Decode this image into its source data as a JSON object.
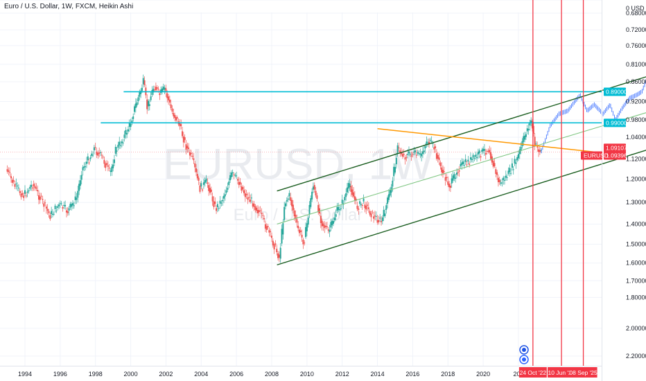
{
  "header": {
    "title": "Euro / U.S. Dollar, 1W, FXCM, Heikin Ashi"
  },
  "watermark": {
    "symbol": "EURUSD",
    "interval": "1W",
    "description": "Euro / U.S. Dollar"
  },
  "colors": {
    "up_candle": "#26a69a",
    "down_candle": "#ef5350",
    "forecast": "#2962ff",
    "channel": "#1b5e20",
    "channel_mid": "#81c784",
    "resistance": "#ff9800",
    "horizontal": "#00bcd4",
    "vertical": "#f23645",
    "price_tag": "#f23645"
  },
  "chart_data": {
    "type": "line",
    "title": "Euro / U.S. Dollar, 1W, FXCM, Heikin Ashi",
    "symbol": "EURUSD",
    "scale": "inverted-log",
    "y_axis_ticks": [
      "0 USD",
      "0.68000",
      "0.72000",
      "0.76000",
      "0.81000",
      "0.86000",
      "0.92000",
      "0.98000",
      "1.04000",
      "1.12000",
      "1.20000",
      "1.30000",
      "1.40000",
      "1.50000",
      "1.60000",
      "1.70000",
      "1.80000",
      "2.00000",
      "2.20000"
    ],
    "y_tick_values": [
      0.65,
      0.68,
      0.72,
      0.76,
      0.81,
      0.86,
      0.92,
      0.98,
      1.04,
      1.12,
      1.2,
      1.3,
      1.4,
      1.5,
      1.6,
      1.7,
      1.8,
      2.0,
      2.2
    ],
    "x_axis_ticks": [
      "1994",
      "1996",
      "1998",
      "2000",
      "2002",
      "2004",
      "2006",
      "2008",
      "2010",
      "2012",
      "2014",
      "2016",
      "2018",
      "2020",
      "202"
    ],
    "x_tick_years": [
      1994,
      1996,
      1998,
      2000,
      2002,
      2004,
      2006,
      2008,
      2010,
      2012,
      2014,
      2016,
      2018,
      2020,
      2022
    ],
    "series": [
      {
        "values": [
          [
            1993.0,
            1.16
          ],
          [
            1993.5,
            1.23
          ],
          [
            1994.0,
            1.27
          ],
          [
            1994.5,
            1.22
          ],
          [
            1995.0,
            1.29
          ],
          [
            1995.5,
            1.36
          ],
          [
            1996.0,
            1.31
          ],
          [
            1996.5,
            1.34
          ],
          [
            1997.0,
            1.28
          ],
          [
            1997.3,
            1.16
          ],
          [
            1997.7,
            1.12
          ],
          [
            1998.0,
            1.08
          ],
          [
            1998.5,
            1.12
          ],
          [
            1998.9,
            1.18
          ],
          [
            1999.2,
            1.09
          ],
          [
            1999.6,
            1.05
          ],
          [
            2000.0,
            1.0
          ],
          [
            2000.3,
            0.94
          ],
          [
            2000.8,
            0.86
          ],
          [
            2001.0,
            0.94
          ],
          [
            2001.4,
            0.87
          ],
          [
            2001.7,
            0.9
          ],
          [
            2002.0,
            0.88
          ],
          [
            2002.4,
            0.95
          ],
          [
            2002.8,
            0.99
          ],
          [
            2003.2,
            1.07
          ],
          [
            2003.6,
            1.13
          ],
          [
            2004.0,
            1.24
          ],
          [
            2004.4,
            1.21
          ],
          [
            2004.9,
            1.33
          ],
          [
            2005.3,
            1.28
          ],
          [
            2005.8,
            1.18
          ],
          [
            2006.2,
            1.21
          ],
          [
            2006.6,
            1.27
          ],
          [
            2007.0,
            1.3
          ],
          [
            2007.4,
            1.35
          ],
          [
            2007.8,
            1.42
          ],
          [
            2008.1,
            1.48
          ],
          [
            2008.5,
            1.57
          ],
          [
            2008.8,
            1.3
          ],
          [
            2009.1,
            1.27
          ],
          [
            2009.5,
            1.41
          ],
          [
            2009.9,
            1.49
          ],
          [
            2010.4,
            1.22
          ],
          [
            2010.9,
            1.39
          ],
          [
            2011.3,
            1.44
          ],
          [
            2011.7,
            1.35
          ],
          [
            2012.1,
            1.3
          ],
          [
            2012.5,
            1.22
          ],
          [
            2012.9,
            1.32
          ],
          [
            2013.3,
            1.3
          ],
          [
            2013.8,
            1.36
          ],
          [
            2014.3,
            1.39
          ],
          [
            2014.8,
            1.25
          ],
          [
            2015.2,
            1.08
          ],
          [
            2015.6,
            1.11
          ],
          [
            2016.0,
            1.1
          ],
          [
            2016.5,
            1.11
          ],
          [
            2016.9,
            1.05
          ],
          [
            2017.3,
            1.08
          ],
          [
            2017.8,
            1.18
          ],
          [
            2018.2,
            1.23
          ],
          [
            2018.6,
            1.16
          ],
          [
            2019.0,
            1.14
          ],
          [
            2019.5,
            1.12
          ],
          [
            2019.9,
            1.1
          ],
          [
            2020.4,
            1.08
          ],
          [
            2020.8,
            1.18
          ],
          [
            2021.0,
            1.22
          ],
          [
            2021.5,
            1.18
          ],
          [
            2022.0,
            1.12
          ],
          [
            2022.5,
            1.02
          ],
          [
            2022.8,
            0.98
          ],
          [
            2023.0,
            1.07
          ],
          [
            2023.3,
            1.09
          ]
        ]
      },
      {
        "values": [
          [
            2023.3,
            1.09
          ],
          [
            2023.8,
            1.0
          ],
          [
            2024.3,
            0.96
          ],
          [
            2024.8,
            0.95
          ],
          [
            2025.2,
            0.92
          ],
          [
            2025.5,
            0.9
          ],
          [
            2025.9,
            0.95
          ],
          [
            2026.3,
            0.93
          ],
          [
            2026.8,
            0.96
          ],
          [
            2027.2,
            0.93
          ],
          [
            2027.5,
            0.98
          ],
          [
            2027.9,
            0.94
          ],
          [
            2028.3,
            0.91
          ],
          [
            2028.7,
            0.9
          ],
          [
            2029.0,
            0.89
          ],
          [
            2029.3,
            0.85
          ]
        ]
      }
    ],
    "drawings": {
      "channel_upper": [
        [
          2008.3,
          1.25
        ],
        [
          2029.6,
          0.84
        ]
      ],
      "channel_lower": [
        [
          2008.3,
          1.61
        ],
        [
          2029.6,
          1.08
        ]
      ],
      "channel_middle": [
        [
          2008.3,
          1.4
        ],
        [
          2029.6,
          0.95
        ]
      ],
      "resistance_line": [
        [
          2014.0,
          1.01
        ],
        [
          2026.5,
          1.095
        ]
      ],
      "horizontal_levels": [
        0.89,
        0.99
      ],
      "vertical_dates": [
        2022.82,
        2024.44,
        2025.68
      ]
    },
    "price_tags": [
      {
        "label": "0.89000",
        "value": 0.89
      },
      {
        "label": "0.99000",
        "value": 0.99
      },
      {
        "label": "1.09107",
        "value": 1.0911
      },
      {
        "label": "1.09396",
        "value": 1.094
      }
    ],
    "symbol_tag": "EURUSD",
    "date_tags": [
      "24 Oct '22",
      "10 Jun '24",
      "08 Sep '25"
    ]
  }
}
